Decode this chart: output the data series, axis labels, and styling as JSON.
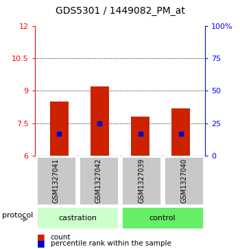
{
  "title": "GDS5301 / 1449082_PM_at",
  "samples": [
    "GSM1327041",
    "GSM1327042",
    "GSM1327039",
    "GSM1327040"
  ],
  "bar_values": [
    8.5,
    9.2,
    7.8,
    8.2
  ],
  "bar_bottom": 6.0,
  "percentile_values": [
    7.0,
    7.5,
    7.0,
    7.0
  ],
  "ylim": [
    6,
    12
  ],
  "y_ticks_left": [
    6,
    7.5,
    9,
    10.5,
    12
  ],
  "y_ticks_right": [
    0,
    25,
    50,
    75,
    100
  ],
  "y_right_labels": [
    "0",
    "25",
    "50",
    "75",
    "100%"
  ],
  "bar_color": "#cc2200",
  "percentile_color": "#0000cc",
  "sample_box_color": "#c8c8c8",
  "castration_color": "#ccffcc",
  "control_color": "#66ee66",
  "title_fontsize": 10,
  "axis_fontsize": 8,
  "bar_width": 0.45,
  "legend_count_label": "count",
  "legend_percentile_label": "percentile rank within the sample",
  "protocol_label": "protocol"
}
